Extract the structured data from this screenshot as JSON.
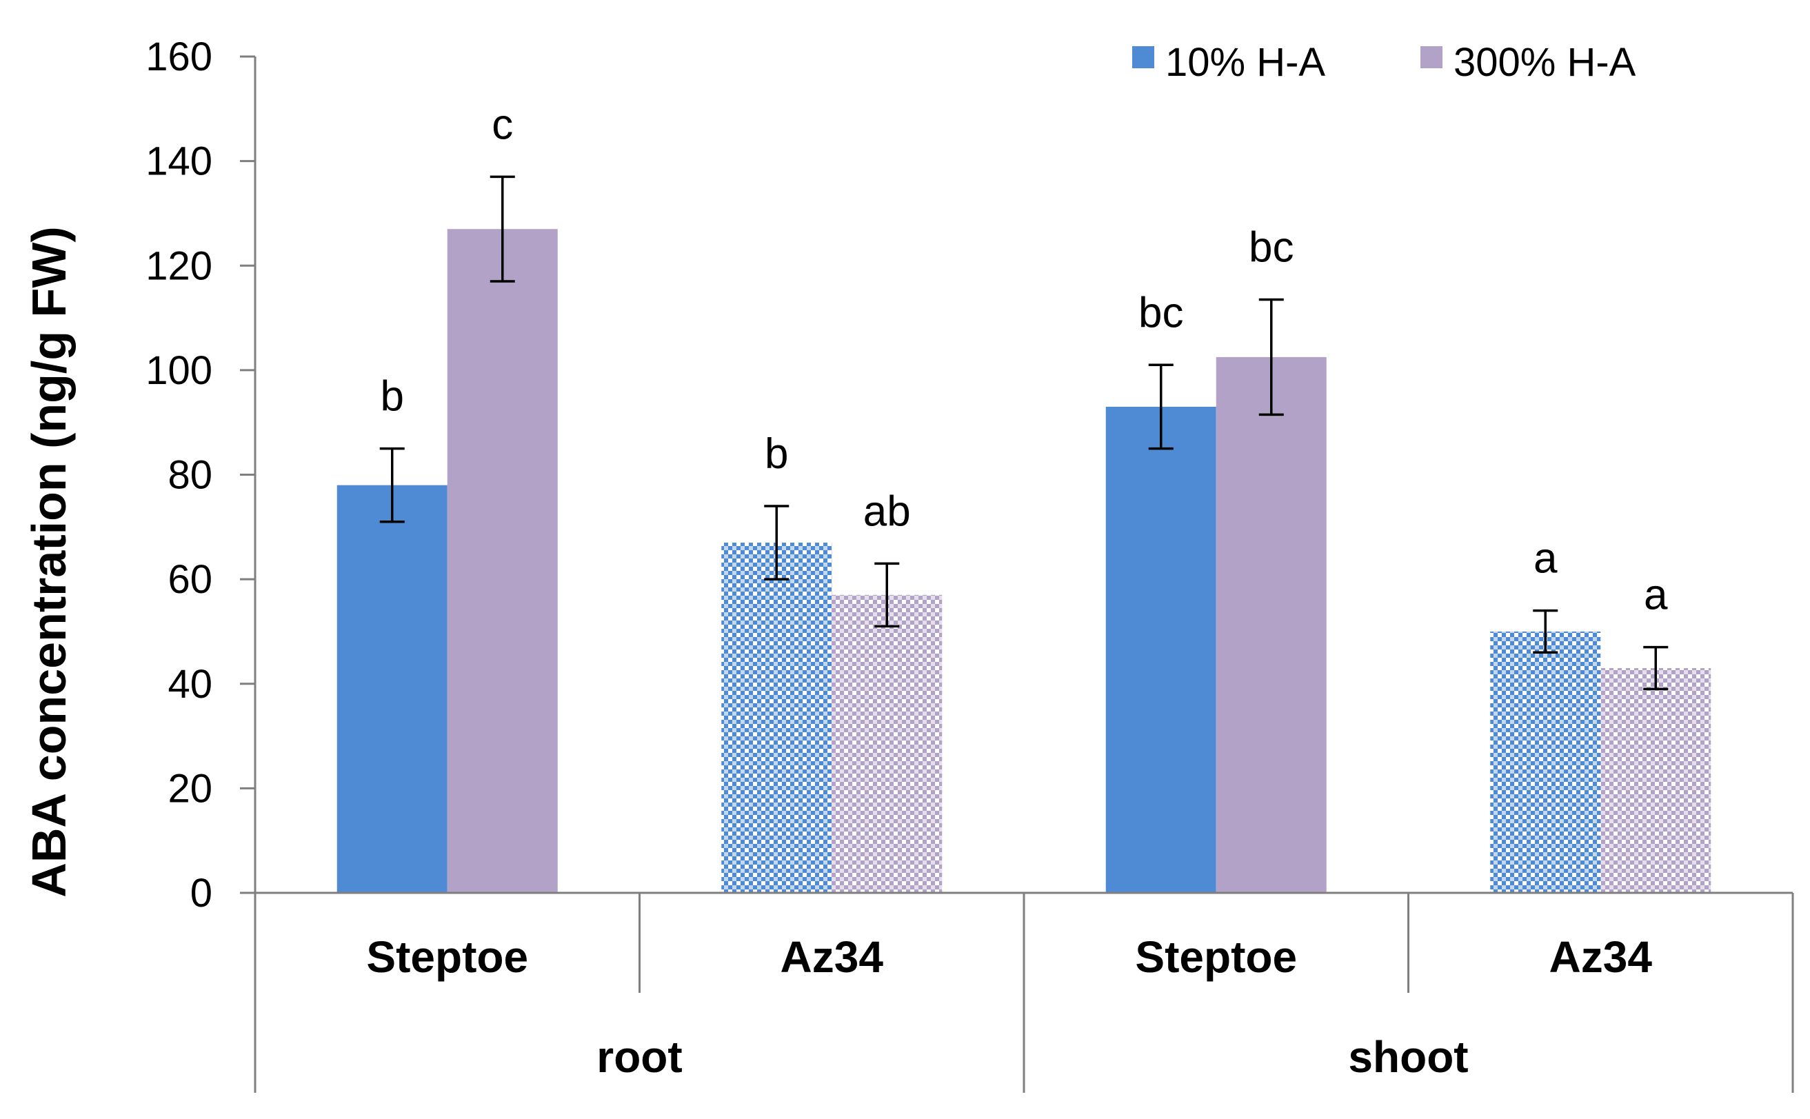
{
  "chart_data": {
    "type": "bar",
    "title": "",
    "xlabel": "",
    "ylabel": "ABA concentration (ng/g FW)",
    "ylim": [
      0,
      160
    ],
    "yticks": [
      0,
      20,
      40,
      60,
      80,
      100,
      120,
      140,
      160
    ],
    "grid": false,
    "legend_position": "top-right",
    "groups": [
      "root",
      "shoot"
    ],
    "categories": [
      {
        "label": "Steptoe",
        "group": "root",
        "patterned": false
      },
      {
        "label": "Az34",
        "group": "root",
        "patterned": true
      },
      {
        "label": "Steptoe",
        "group": "shoot",
        "patterned": false
      },
      {
        "label": "Az34",
        "group": "shoot",
        "patterned": true
      }
    ],
    "series": [
      {
        "name": "10% H-A",
        "color": "#4f8bd4",
        "values": [
          78,
          67,
          93,
          50
        ],
        "errors": [
          7,
          7,
          8,
          4
        ],
        "sig_letters": [
          "b",
          "b",
          "bc",
          "a"
        ]
      },
      {
        "name": "300% H-A",
        "color": "#b3a2c7",
        "values": [
          127,
          57,
          102.5,
          43
        ],
        "errors": [
          10,
          6,
          11,
          4
        ],
        "sig_letters": [
          "c",
          "ab",
          "bc",
          "a"
        ]
      }
    ]
  }
}
